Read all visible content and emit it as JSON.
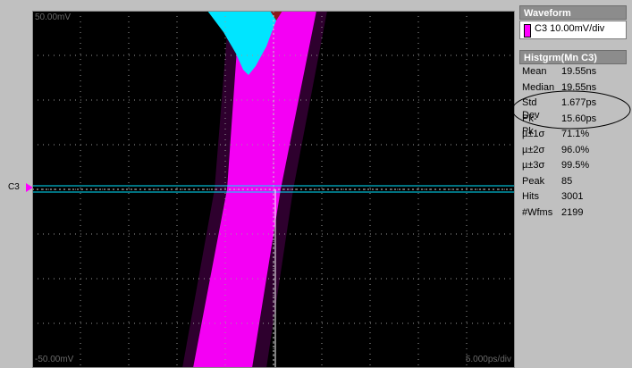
{
  "screen": {
    "top_left_scale": "50.00mV",
    "bottom_left_scale": "-50.00mV",
    "bottom_right_scale": "5.000ps/div",
    "channel_marker": "C3"
  },
  "panel": {
    "waveform_header": "Waveform",
    "trace_label": "C3 10.00mV/div",
    "histogram_header": "Histgrm(Mn C3)",
    "stats": [
      {
        "key": "Mean",
        "value": "19.55ns"
      },
      {
        "key": "Median",
        "value": "19.55ns"
      },
      {
        "key": "Std Dev",
        "value": "1.677ps"
      },
      {
        "key": "Pk-Pk",
        "value": "15.60ps"
      },
      {
        "key": "µ±1σ",
        "value": "71.1%"
      },
      {
        "key": "µ±2σ",
        "value": "96.0%"
      },
      {
        "key": "µ±3σ",
        "value": "99.5%"
      },
      {
        "key": "Peak",
        "value": "85"
      },
      {
        "key": "Hits",
        "value": "3001"
      },
      {
        "key": "#Wfms",
        "value": "2199"
      }
    ]
  },
  "colors": {
    "trace": "#ff00ff",
    "histogram": "#00e5ff",
    "grid": "#9a9a9a",
    "mean_marker": "#8b1a1a"
  }
}
